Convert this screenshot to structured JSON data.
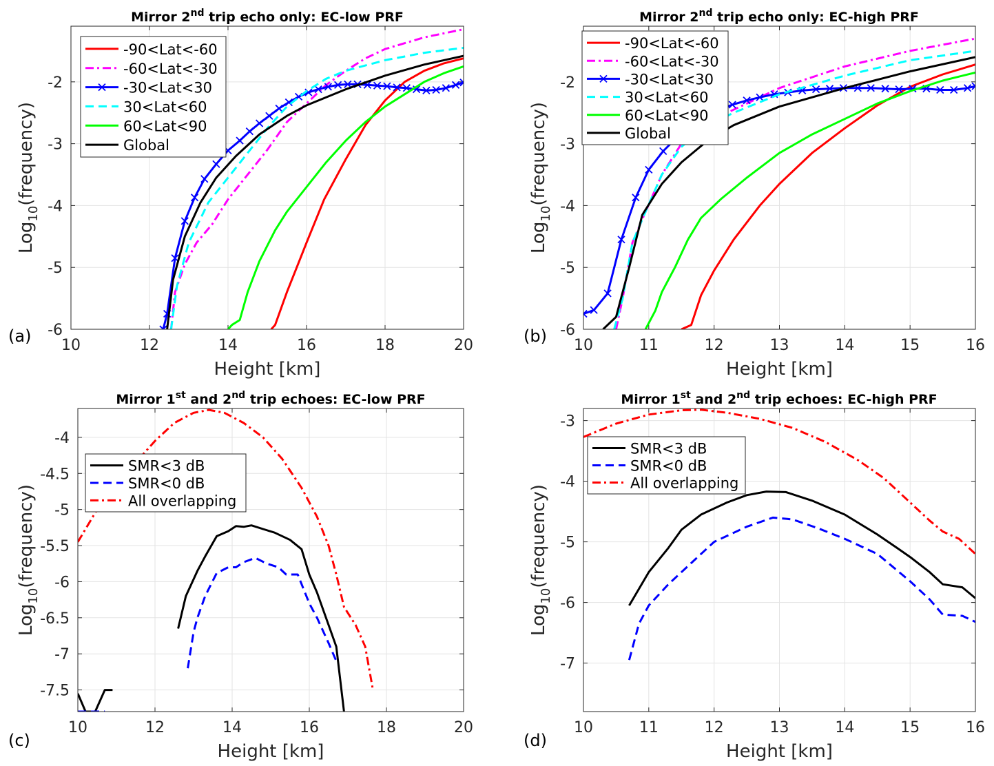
{
  "chart_data": [
    {
      "panel_label": "(a)",
      "type": "line",
      "title": {
        "prefix": "Mirror 2",
        "sup": "nd",
        "suffix": " trip echo only: EC-low PRF"
      },
      "xlabel": "Height [km]",
      "ylabel": {
        "prefix": "Log",
        "sub": "10",
        "suffix": "(frequency)"
      },
      "xlim": [
        10,
        20
      ],
      "ylim": [
        -6,
        -1.1
      ],
      "xticks": [
        10,
        12,
        14,
        16,
        18,
        20
      ],
      "yticks": [
        -6,
        -5,
        -4,
        -3,
        -2
      ],
      "grid": true,
      "legend_position": "top-left",
      "series": [
        {
          "name": "-90<Lat<-60",
          "color": "#ff0000",
          "style": "solid",
          "x": [
            15.1,
            15.2,
            15.5,
            15.75,
            16,
            16.45,
            17,
            17.5,
            18,
            18.5,
            19,
            19.5,
            20
          ],
          "y": [
            -6,
            -5.93,
            -5.4,
            -5.0,
            -4.6,
            -3.9,
            -3.25,
            -2.7,
            -2.3,
            -2.0,
            -1.82,
            -1.7,
            -1.62
          ]
        },
        {
          "name": "-60<Lat<-30",
          "color": "#ff00ff",
          "style": "dashdot",
          "x": [
            12.55,
            12.65,
            12.9,
            13.2,
            13.6,
            14,
            14.5,
            15,
            15.5,
            16,
            16.5,
            17,
            17.5,
            18,
            19,
            20
          ],
          "y": [
            -6,
            -5.4,
            -4.95,
            -4.6,
            -4.3,
            -3.9,
            -3.5,
            -3.1,
            -2.65,
            -2.35,
            -2.05,
            -1.82,
            -1.62,
            -1.47,
            -1.28,
            -1.15
          ]
        },
        {
          "name": "-30<Lat<30",
          "color": "#0000ff",
          "style": "solid",
          "marker": "x",
          "x": [
            12.35,
            12.45,
            12.65,
            12.9,
            13.15,
            13.4,
            13.7,
            14,
            14.3,
            14.55,
            14.8,
            15.05,
            15.3,
            15.55,
            15.8,
            16.05,
            16.3,
            16.55,
            16.8,
            17.05,
            17.3,
            17.55,
            17.8,
            18.05,
            18.3,
            18.55,
            18.8,
            19.05,
            19.3,
            19.55,
            19.8,
            20
          ],
          "y": [
            -6,
            -5.75,
            -4.85,
            -4.25,
            -3.87,
            -3.57,
            -3.33,
            -3.11,
            -2.95,
            -2.8,
            -2.67,
            -2.55,
            -2.43,
            -2.33,
            -2.24,
            -2.17,
            -2.12,
            -2.08,
            -2.05,
            -2.04,
            -2.04,
            -2.05,
            -2.06,
            -2.07,
            -2.09,
            -2.1,
            -2.12,
            -2.14,
            -2.13,
            -2.1,
            -2.05,
            -2.01
          ]
        },
        {
          "name": "30<Lat<60",
          "color": "#00ffff",
          "style": "dash",
          "x": [
            12.55,
            12.7,
            13,
            13.5,
            14,
            14.5,
            15,
            15.5,
            16,
            16.5,
            17,
            18,
            19,
            20
          ],
          "y": [
            -6,
            -5.3,
            -4.6,
            -3.95,
            -3.55,
            -3.15,
            -2.75,
            -2.4,
            -2.15,
            -1.95,
            -1.82,
            -1.65,
            -1.53,
            -1.45
          ]
        },
        {
          "name": "60<Lat<90",
          "color": "#00ff00",
          "style": "solid",
          "x": [
            14,
            14.1,
            14.3,
            14.5,
            14.8,
            15.2,
            15.5,
            16,
            16.5,
            17,
            17.5,
            18,
            18.5,
            19,
            19.5,
            20
          ],
          "y": [
            -6,
            -5.93,
            -5.85,
            -5.4,
            -4.9,
            -4.4,
            -4.1,
            -3.7,
            -3.3,
            -2.95,
            -2.65,
            -2.4,
            -2.2,
            -2.0,
            -1.86,
            -1.75
          ]
        },
        {
          "name": "Global",
          "color": "#000000",
          "style": "solid",
          "x": [
            12.45,
            12.6,
            12.9,
            13.3,
            13.7,
            14.2,
            14.8,
            15.5,
            16,
            17,
            18,
            19,
            20
          ],
          "y": [
            -6,
            -5.2,
            -4.5,
            -3.95,
            -3.55,
            -3.2,
            -2.85,
            -2.55,
            -2.38,
            -2.12,
            -1.9,
            -1.72,
            -1.58
          ]
        }
      ]
    },
    {
      "panel_label": "(b)",
      "type": "line",
      "title": {
        "prefix": "Mirror 2",
        "sup": "nd",
        "suffix": " trip echo only: EC-high PRF"
      },
      "xlabel": "Height [km]",
      "ylabel": {
        "prefix": "Log",
        "sub": "10",
        "suffix": "(frequency)"
      },
      "xlim": [
        10,
        16
      ],
      "ylim": [
        -6,
        -1.1
      ],
      "xticks": [
        10,
        11,
        12,
        13,
        14,
        15,
        16
      ],
      "yticks": [
        -6,
        -5,
        -4,
        -3,
        -2
      ],
      "grid": true,
      "legend_position": "top-left",
      "series": [
        {
          "name": "-90<Lat<-60",
          "color": "#ff0000",
          "style": "solid",
          "x": [
            11.5,
            11.65,
            11.8,
            12,
            12.3,
            12.7,
            13,
            13.5,
            14,
            14.5,
            15,
            15.5,
            16
          ],
          "y": [
            -6,
            -5.93,
            -5.45,
            -5.05,
            -4.55,
            -4.0,
            -3.65,
            -3.15,
            -2.75,
            -2.38,
            -2.08,
            -1.88,
            -1.72
          ]
        },
        {
          "name": "-60<Lat<-30",
          "color": "#ff00ff",
          "style": "dashdot",
          "x": [
            10.5,
            10.6,
            10.75,
            10.95,
            11.2,
            11.5,
            11.9,
            12.3,
            13,
            14,
            15,
            16
          ],
          "y": [
            -6,
            -5.5,
            -4.6,
            -4.1,
            -3.5,
            -3.0,
            -2.65,
            -2.45,
            -2.1,
            -1.75,
            -1.5,
            -1.3
          ]
        },
        {
          "name": "-30<Lat<30",
          "color": "#0000ff",
          "style": "solid",
          "marker": "x",
          "x": [
            10,
            10.16,
            10.37,
            10.58,
            10.8,
            11.0,
            11.22,
            11.43,
            11.64,
            11.86,
            12.07,
            12.28,
            12.5,
            12.7,
            12.92,
            13.13,
            13.35,
            13.56,
            13.77,
            13.98,
            14.2,
            14.4,
            14.62,
            14.83,
            15.04,
            15.25,
            15.46,
            15.67,
            15.88,
            16
          ],
          "y": [
            -5.75,
            -5.69,
            -5.42,
            -4.55,
            -3.87,
            -3.42,
            -3.12,
            -2.9,
            -2.72,
            -2.58,
            -2.45,
            -2.37,
            -2.3,
            -2.25,
            -2.2,
            -2.17,
            -2.14,
            -2.12,
            -2.11,
            -2.1,
            -2.1,
            -2.1,
            -2.11,
            -2.12,
            -2.11,
            -2.11,
            -2.13,
            -2.13,
            -2.1,
            -2.07
          ]
        },
        {
          "name": "30<Lat<60",
          "color": "#00ffff",
          "style": "dash",
          "x": [
            10.47,
            10.6,
            10.75,
            10.95,
            11.2,
            11.5,
            11.9,
            12.3,
            13,
            14,
            15,
            16
          ],
          "y": [
            -6,
            -5.5,
            -4.6,
            -4.1,
            -3.5,
            -3.05,
            -2.7,
            -2.5,
            -2.2,
            -1.9,
            -1.65,
            -1.5
          ]
        },
        {
          "name": "60<Lat<90",
          "color": "#00ff00",
          "style": "solid",
          "x": [
            10.95,
            11.1,
            11.2,
            11.4,
            11.6,
            11.8,
            12.1,
            12.5,
            13,
            13.5,
            14,
            14.5,
            15,
            15.5,
            16
          ],
          "y": [
            -6,
            -5.7,
            -5.4,
            -5.0,
            -4.55,
            -4.2,
            -3.9,
            -3.55,
            -3.15,
            -2.85,
            -2.6,
            -2.35,
            -2.15,
            -1.98,
            -1.85
          ]
        },
        {
          "name": "Global",
          "color": "#000000",
          "style": "solid",
          "x": [
            10.3,
            10.5,
            10.7,
            10.9,
            11.2,
            11.5,
            11.9,
            12.3,
            13,
            14,
            15,
            16
          ],
          "y": [
            -6,
            -5.8,
            -5.0,
            -4.15,
            -3.65,
            -3.3,
            -2.95,
            -2.7,
            -2.4,
            -2.1,
            -1.83,
            -1.6
          ]
        }
      ]
    },
    {
      "panel_label": "(c)",
      "type": "line",
      "title": {
        "prefix": "Mirror 1",
        "sup": "st",
        "middle": " and 2",
        "sup2": "nd",
        "suffix": " trip echoes: EC-low PRF"
      },
      "xlabel": "Height [km]",
      "ylabel": {
        "prefix": "Log",
        "sub": "10",
        "suffix": "(frequency)"
      },
      "xlim": [
        10,
        20
      ],
      "ylim": [
        -7.8,
        -3.6
      ],
      "xticks": [
        10,
        12,
        14,
        16,
        18,
        20
      ],
      "yticks": [
        -7.5,
        -7,
        -6.5,
        -6,
        -5.5,
        -5,
        -4.5,
        -4
      ],
      "grid": true,
      "legend_position": "upper-left",
      "series": [
        {
          "name": "SMR<3 dB",
          "color": "#000000",
          "style": "solid",
          "x": [
            10,
            10.2,
            10.45,
            10.7,
            10.9,
            null,
            12.6,
            12.8,
            13.1,
            13.3,
            13.6,
            13.9,
            14.1,
            14.3,
            14.5,
            14.8,
            15.1,
            15.5,
            15.8,
            16,
            16.2,
            16.5,
            16.7,
            16.9
          ],
          "y": [
            -7.55,
            -7.8,
            -7.8,
            -7.5,
            -7.5,
            null,
            -6.65,
            -6.2,
            -5.85,
            -5.65,
            -5.37,
            -5.3,
            -5.23,
            -5.24,
            -5.22,
            -5.27,
            -5.32,
            -5.42,
            -5.55,
            -5.9,
            -6.15,
            -6.6,
            -6.9,
            -7.8
          ]
        },
        {
          "name": "SMR<0 dB",
          "color": "#0000ff",
          "style": "dash",
          "x": [
            10,
            10.7,
            null,
            12.85,
            13,
            13.1,
            13.3,
            13.6,
            13.9,
            14.1,
            14.3,
            14.6,
            14.9,
            15.2,
            15.4,
            15.7,
            16,
            16.2,
            16.5,
            16.7
          ],
          "y": [
            -7.8,
            -7.8,
            null,
            -7.2,
            -6.7,
            -6.5,
            -6.2,
            -5.88,
            -5.8,
            -5.8,
            -5.73,
            -5.67,
            -5.75,
            -5.8,
            -5.9,
            -5.9,
            -6.3,
            -6.5,
            -6.85,
            -7.1
          ]
        },
        {
          "name": "All overlapping",
          "color": "#ff0000",
          "style": "dashdot",
          "x": [
            10,
            10.5,
            11,
            11.5,
            12,
            12.5,
            13,
            13.4,
            13.8,
            14.3,
            14.8,
            15.3,
            15.8,
            16.2,
            16.5,
            16.7,
            16.9,
            17.2,
            17.45,
            17.65
          ],
          "y": [
            -5.45,
            -5.0,
            -4.65,
            -4.35,
            -4.05,
            -3.8,
            -3.66,
            -3.62,
            -3.66,
            -3.8,
            -4.0,
            -4.3,
            -4.7,
            -5.1,
            -5.5,
            -5.9,
            -6.35,
            -6.6,
            -6.9,
            -7.5
          ]
        }
      ]
    },
    {
      "panel_label": "(d)",
      "type": "line",
      "title": {
        "prefix": "Mirror 1",
        "sup": "st",
        "middle": " and 2",
        "sup2": "nd",
        "suffix": " trip echoes: EC-high PRF"
      },
      "xlabel": "Height [km]",
      "ylabel": {
        "prefix": "Log",
        "sub": "10",
        "suffix": "(frequency)"
      },
      "xlim": [
        10,
        16
      ],
      "ylim": [
        -7.8,
        -2.8
      ],
      "xticks": [
        10,
        11,
        12,
        13,
        14,
        15,
        16
      ],
      "yticks": [
        -7,
        -6,
        -5,
        -4,
        -3
      ],
      "grid": true,
      "legend_position": "upper-left",
      "series": [
        {
          "name": "SMR<3 dB",
          "color": "#000000",
          "style": "solid",
          "x": [
            10.7,
            11,
            11.3,
            11.5,
            11.8,
            12.2,
            12.5,
            12.8,
            13.1,
            13.5,
            14,
            14.5,
            14.8,
            15,
            15.3,
            15.5,
            15.8,
            16
          ],
          "y": [
            -6.05,
            -5.5,
            -5.1,
            -4.8,
            -4.55,
            -4.35,
            -4.23,
            -4.17,
            -4.18,
            -4.32,
            -4.55,
            -4.88,
            -5.1,
            -5.25,
            -5.5,
            -5.7,
            -5.75,
            -5.93
          ]
        },
        {
          "name": "SMR<0 dB",
          "color": "#0000ff",
          "style": "dash",
          "x": [
            10.7,
            10.85,
            11,
            11.3,
            11.7,
            12,
            12.5,
            12.9,
            13.2,
            13.6,
            14,
            14.5,
            15,
            15.3,
            15.5,
            15.8,
            16
          ],
          "y": [
            -6.95,
            -6.35,
            -6.05,
            -5.7,
            -5.3,
            -5.0,
            -4.75,
            -4.6,
            -4.63,
            -4.78,
            -4.95,
            -5.2,
            -5.65,
            -5.95,
            -6.2,
            -6.22,
            -6.32
          ]
        },
        {
          "name": "All overlapping",
          "color": "#ff0000",
          "style": "dashdot",
          "x": [
            10,
            10.5,
            11,
            11.5,
            11.8,
            12.2,
            12.7,
            13.2,
            13.7,
            14.2,
            14.6,
            15,
            15.3,
            15.5,
            15.75,
            16
          ],
          "y": [
            -3.27,
            -3.05,
            -2.9,
            -2.83,
            -2.82,
            -2.87,
            -2.97,
            -3.12,
            -3.35,
            -3.65,
            -3.95,
            -4.35,
            -4.65,
            -4.83,
            -4.95,
            -5.2
          ]
        }
      ]
    }
  ]
}
